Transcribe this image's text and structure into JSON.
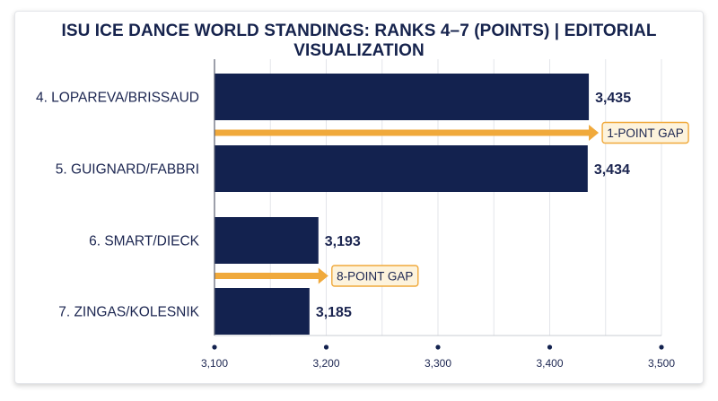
{
  "chart_data": {
    "type": "bar",
    "orientation": "horizontal",
    "title": "ISU ICE DANCE WORLD STANDINGS: RANKS 4–7 (POINTS) | EDITORIAL VISUALIZATION",
    "xlabel": "",
    "ylabel": "",
    "categories": [
      "4. LOPAREVA/BRISSAUD",
      "5. GUIGNARD/FABBRI",
      "6. SMART/DIECK",
      "7. ZINGAS/KOLESNIK"
    ],
    "values": [
      3435,
      3434,
      3193,
      3185
    ],
    "value_labels": [
      "3,435",
      "3,434",
      "3,193",
      "3,185"
    ],
    "xlim": [
      3100,
      3500
    ],
    "x_ticks": [
      3100,
      3200,
      3300,
      3400,
      3500
    ],
    "x_tick_labels": [
      "3,100",
      "3,200",
      "3,300",
      "3,400",
      "3,500"
    ],
    "grid": "vertical",
    "bar_color": "#13224f",
    "annotations": [
      {
        "text": "1-POINT GAP",
        "between": [
          0,
          1
        ],
        "x": 3435,
        "color": "#f0a93b"
      },
      {
        "text": "8-POINT GAP",
        "between": [
          2,
          3
        ],
        "x": 3193,
        "color": "#f0a93b"
      }
    ]
  }
}
